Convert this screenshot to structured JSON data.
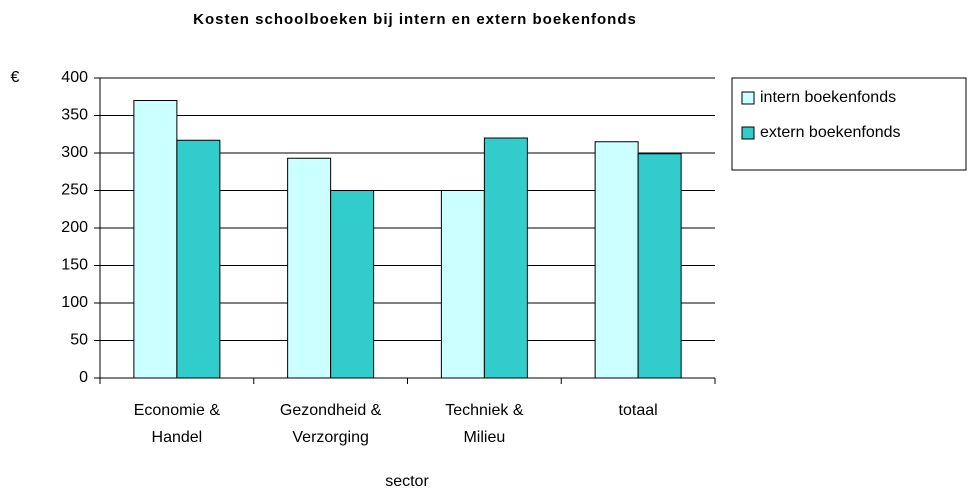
{
  "chart_data": {
    "type": "bar",
    "title": "Kosten schoolboeken bij intern en extern boekenfonds",
    "y_label": "€",
    "x_label": "sector",
    "categories": [
      [
        "Economie &",
        "Handel"
      ],
      [
        "Gezondheid &",
        "Verzorging"
      ],
      [
        "Techniek &",
        "Milieu"
      ],
      [
        "totaal"
      ]
    ],
    "series": [
      {
        "name": "intern boekenfonds",
        "color": "#ccffff",
        "values": [
          370,
          293,
          250,
          315
        ]
      },
      {
        "name": "extern boekenfonds",
        "color": "#33cccc",
        "values": [
          317,
          250,
          320,
          299
        ]
      }
    ],
    "ylim": [
      0,
      400
    ],
    "yticks": [
      0,
      50,
      100,
      150,
      200,
      250,
      300,
      350,
      400
    ],
    "grid": true,
    "legend": "right"
  }
}
